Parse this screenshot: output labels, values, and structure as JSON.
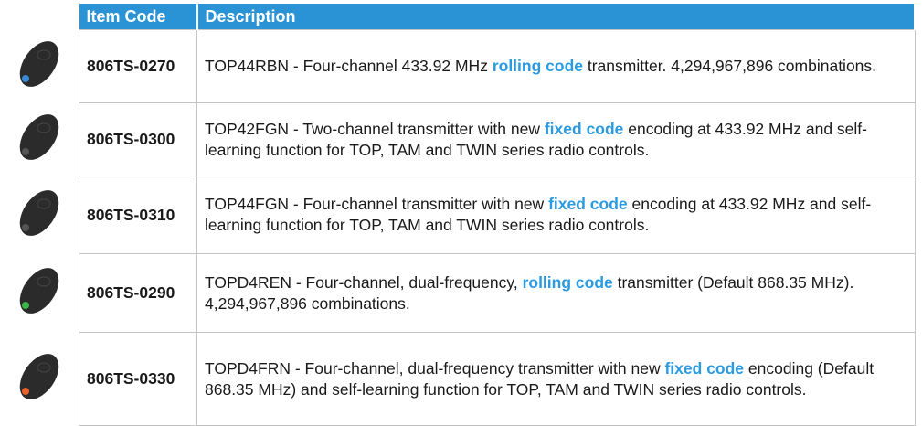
{
  "table": {
    "header": [
      "Item Code",
      "Description"
    ],
    "rows": [
      {
        "code": "806TS-0270",
        "before": "TOP44RBN - Four-channel 433.92 MHz ",
        "highlight": "rolling code",
        "after": " transmitter. 4,294,967,896 combinations."
      },
      {
        "code": "806TS-0300",
        "before": "TOP42FGN - Two-channel transmitter with new ",
        "highlight": "fixed code",
        "after": " encoding at 433.92 MHz and self-learning function for TOP, TAM and TWIN series radio controls."
      },
      {
        "code": "806TS-0310",
        "before": "TOP44FGN - Four-channel transmitter with new ",
        "highlight": "fixed code",
        "after": " encoding at 433.92 MHz and self-learning function for TOP, TAM and TWIN series radio controls."
      },
      {
        "code": "806TS-0290",
        "before": "TOPD4REN - Four-channel, dual-frequency, ",
        "highlight": "rolling code",
        "after": " transmitter (Default 868.35 MHz). 4,294,967,896 combinations."
      },
      {
        "code": "806TS-0330",
        "before": "TOPD4FRN - Four-channel, dual-frequency transmitter with new ",
        "highlight": "fixed code",
        "after": " encoding (Default 868.35 MHz) and self-learning function for TOP, TAM and TWIN series radio controls."
      }
    ]
  }
}
